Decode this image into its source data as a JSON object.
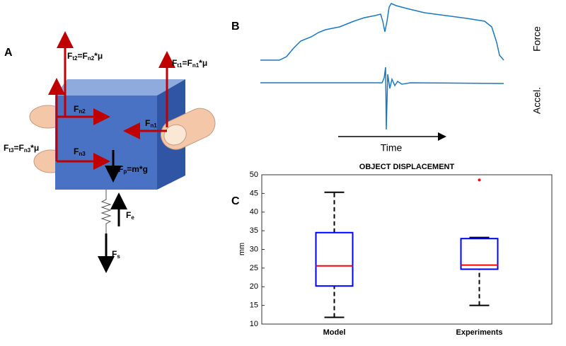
{
  "panels": {
    "a": "A",
    "b": "B",
    "c": "C"
  },
  "diagram": {
    "labels": [
      [
        "F",
        "t2",
        "=F",
        "n2",
        "*μ"
      ],
      [
        "F",
        "t1",
        "=F",
        "n1",
        "*μ"
      ],
      [
        "F",
        "n2"
      ],
      [
        "F",
        "n1"
      ],
      [
        "F",
        "n3"
      ],
      [
        "F",
        "t3",
        "=F",
        "n3",
        "*μ"
      ],
      [
        "F",
        "p",
        "=m*g"
      ],
      [
        "F",
        "e"
      ],
      [
        "F",
        "s"
      ]
    ]
  },
  "traces": {
    "force": "Force",
    "accel": "Accel.",
    "time": "Time"
  },
  "chart_data": {
    "type": "box",
    "title": "OBJECT DISPLACEMENT",
    "y_label": "mm",
    "categories": [
      "Model",
      "Experiments"
    ],
    "whisker_low": [
      11.8,
      15
    ],
    "q1": [
      20.2,
      24.7
    ],
    "median": [
      25.6,
      25.8
    ],
    "q3": [
      34.5,
      32.9
    ],
    "whisker_high": [
      45.3,
      33.2
    ],
    "outliers": [
      [],
      [
        48.6
      ]
    ],
    "box_color": "#0000ff",
    "median_color": "#ff0000",
    "outlier_color": "#ff0000",
    "ylim": [
      10,
      50
    ],
    "yticks": [
      10,
      15,
      20,
      25,
      30,
      35,
      40,
      45,
      50
    ]
  }
}
